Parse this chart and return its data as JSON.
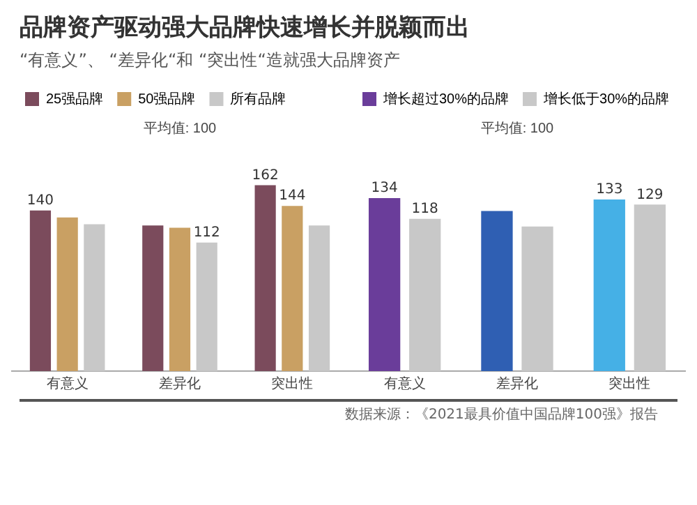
{
  "chart_data": [
    {
      "type": "bar",
      "title": "品牌资产驱动强大品牌快速增长并脱颖而出",
      "subtitle": "“有意义”、 “差异化“和 “突出性“造就强大品牌资产",
      "categories": [
        "有意义",
        "差异化",
        "突出性"
      ],
      "legend": "top",
      "annotations": [
        "平均值: 100"
      ],
      "series": [
        {
          "name": "25强品牌",
          "color": "#7b4b5c",
          "values": [
            140,
            127,
            162
          ],
          "value_labels": [
            "140",
            null,
            "162"
          ]
        },
        {
          "name": "50强品牌",
          "color": "#c9a063",
          "values": [
            134,
            125,
            144
          ],
          "value_labels": [
            null,
            null,
            "144"
          ]
        },
        {
          "name": "所有品牌",
          "color": "#c8c8c8",
          "values": [
            128,
            112,
            127
          ],
          "value_labels": [
            null,
            "112",
            null
          ]
        }
      ]
    },
    {
      "type": "bar",
      "categories": [
        "有意义",
        "差异化",
        "突出性"
      ],
      "legend": "top",
      "annotations": [
        "平均值: 100",
        "数据来源：《2021最具价值中国品牌100强》报告"
      ],
      "series": [
        {
          "name": "增长超过30%的品牌",
          "color": "#6a3d9a",
          "colors": [
            "#6a3d9a",
            "#2f5fb3",
            "#45b0e6"
          ],
          "values": [
            134,
            124,
            133
          ],
          "value_labels": [
            "134",
            null,
            "133"
          ]
        },
        {
          "name": "增长低于30%的品牌",
          "color": "#c8c8c8",
          "values": [
            118,
            112,
            129
          ],
          "value_labels": [
            "118",
            null,
            "129"
          ]
        }
      ]
    }
  ]
}
